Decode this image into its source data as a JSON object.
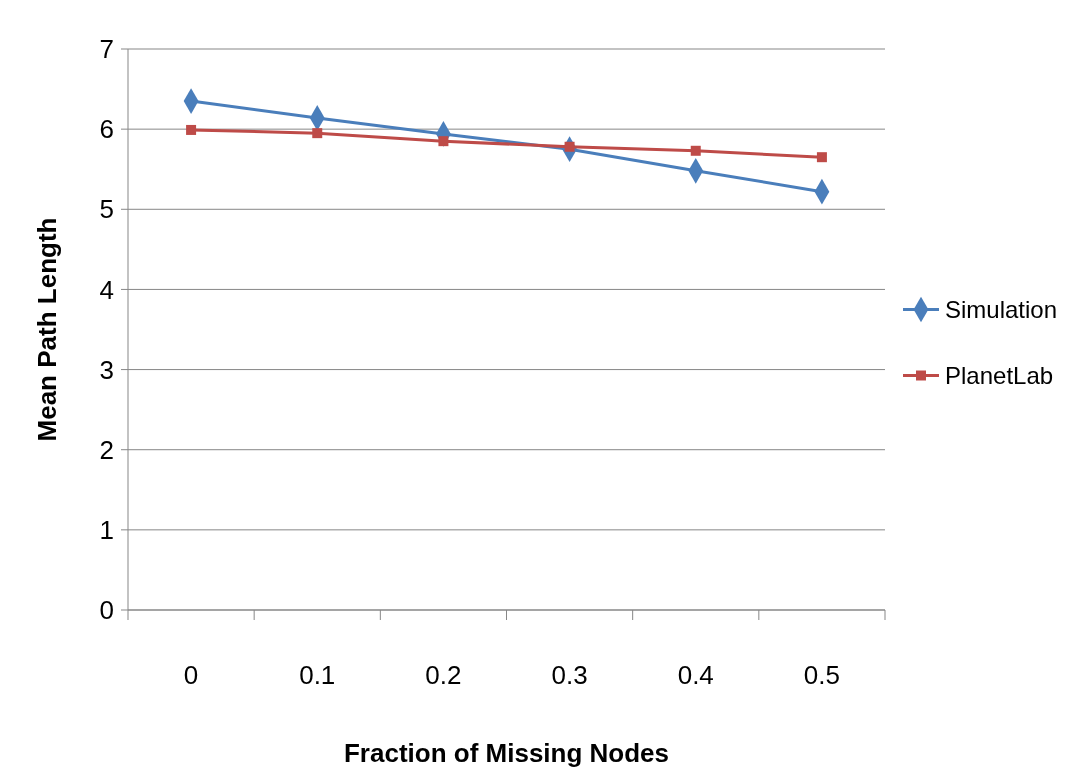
{
  "chart_data": {
    "type": "line",
    "xlabel": "Fraction of Missing Nodes",
    "ylabel": "Mean Path Length",
    "categories": [
      "0",
      "0.1",
      "0.2",
      "0.3",
      "0.4",
      "0.5"
    ],
    "ylim": [
      0,
      7
    ],
    "yticks": [
      0,
      1,
      2,
      3,
      4,
      5,
      6,
      7
    ],
    "grid": "y",
    "legend": "right",
    "series": [
      {
        "name": "Simulation",
        "color": "#4a7ebb",
        "marker": "diamond",
        "values": [
          6.35,
          6.14,
          5.94,
          5.75,
          5.48,
          5.22
        ]
      },
      {
        "name": "PlanetLab",
        "color": "#be4b48",
        "marker": "square",
        "values": [
          5.99,
          5.95,
          5.85,
          5.78,
          5.73,
          5.65
        ]
      }
    ]
  }
}
